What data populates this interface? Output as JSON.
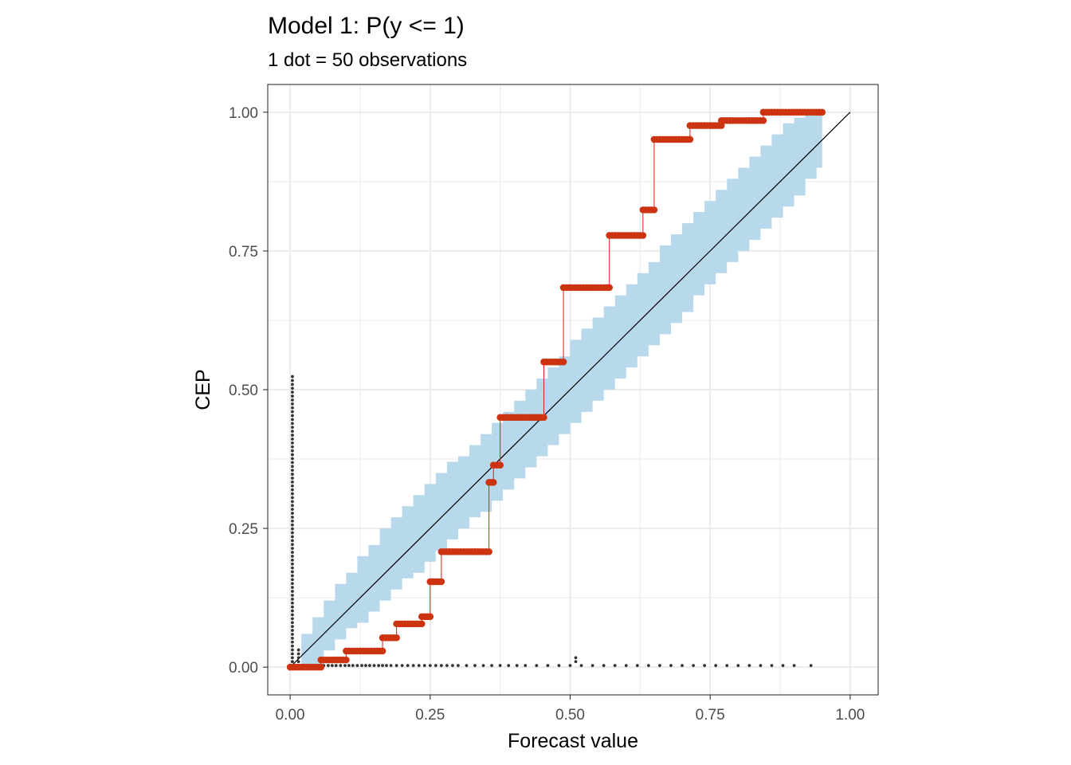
{
  "chart_data": {
    "type": "scatter",
    "title": "Model 1: P(y <= 1)",
    "subtitle": "1 dot = 50 observations",
    "xlabel": "Forecast value",
    "ylabel": "CEP",
    "xlim": [
      -0.04,
      1.05
    ],
    "ylim": [
      -0.05,
      1.05
    ],
    "x_ticks": [
      "0.00",
      "0.25",
      "0.50",
      "0.75",
      "1.00"
    ],
    "y_ticks": [
      "0.00",
      "0.25",
      "0.50",
      "0.75",
      "1.00"
    ],
    "grid": true,
    "legend": "none",
    "colors": {
      "cep": "#cc3311",
      "cep_line": "#e31a1c",
      "band": "#b8d8ec",
      "diagonal": "#000000",
      "histogram_dots": "#333333",
      "grid": "#ebebeb",
      "panel_border": "#333333"
    },
    "cep_steps": [
      {
        "x0": 0.0,
        "x1": 0.055,
        "y": 0.0
      },
      {
        "x0": 0.055,
        "x1": 0.1,
        "y": 0.013
      },
      {
        "x0": 0.1,
        "x1": 0.165,
        "y": 0.029
      },
      {
        "x0": 0.165,
        "x1": 0.19,
        "y": 0.053
      },
      {
        "x0": 0.19,
        "x1": 0.235,
        "y": 0.078
      },
      {
        "x0": 0.235,
        "x1": 0.25,
        "y": 0.091
      },
      {
        "x0": 0.25,
        "x1": 0.27,
        "y": 0.154
      },
      {
        "x0": 0.27,
        "x1": 0.355,
        "y": 0.208
      },
      {
        "x0": 0.355,
        "x1": 0.363,
        "y": 0.333
      },
      {
        "x0": 0.363,
        "x1": 0.375,
        "y": 0.364
      },
      {
        "x0": 0.375,
        "x1": 0.453,
        "y": 0.45
      },
      {
        "x0": 0.453,
        "x1": 0.488,
        "y": 0.55
      },
      {
        "x0": 0.488,
        "x1": 0.57,
        "y": 0.684
      },
      {
        "x0": 0.57,
        "x1": 0.63,
        "y": 0.778
      },
      {
        "x0": 0.63,
        "x1": 0.65,
        "y": 0.824
      },
      {
        "x0": 0.65,
        "x1": 0.714,
        "y": 0.951
      },
      {
        "x0": 0.714,
        "x1": 0.77,
        "y": 0.976
      },
      {
        "x0": 0.77,
        "x1": 0.845,
        "y": 0.985
      },
      {
        "x0": 0.845,
        "x1": 0.95,
        "y": 1.0
      }
    ],
    "band": {
      "x": [
        0.0,
        0.02,
        0.04,
        0.06,
        0.08,
        0.1,
        0.12,
        0.14,
        0.16,
        0.18,
        0.2,
        0.22,
        0.24,
        0.26,
        0.28,
        0.3,
        0.32,
        0.34,
        0.36,
        0.38,
        0.4,
        0.42,
        0.44,
        0.46,
        0.48,
        0.5,
        0.52,
        0.54,
        0.56,
        0.58,
        0.6,
        0.62,
        0.64,
        0.66,
        0.68,
        0.7,
        0.72,
        0.74,
        0.76,
        0.78,
        0.8,
        0.82,
        0.84,
        0.86,
        0.88,
        0.9,
        0.92,
        0.94,
        0.95
      ],
      "lower": [
        0.0,
        0.0,
        0.0,
        0.0,
        0.03,
        0.05,
        0.07,
        0.08,
        0.1,
        0.12,
        0.14,
        0.16,
        0.17,
        0.19,
        0.21,
        0.23,
        0.25,
        0.27,
        0.28,
        0.3,
        0.32,
        0.34,
        0.36,
        0.38,
        0.4,
        0.42,
        0.44,
        0.46,
        0.48,
        0.5,
        0.52,
        0.54,
        0.56,
        0.58,
        0.6,
        0.62,
        0.64,
        0.67,
        0.69,
        0.71,
        0.73,
        0.75,
        0.77,
        0.79,
        0.81,
        0.83,
        0.85,
        0.88,
        0.9
      ],
      "upper": [
        0.0,
        0.06,
        0.09,
        0.12,
        0.15,
        0.17,
        0.2,
        0.22,
        0.25,
        0.27,
        0.29,
        0.31,
        0.33,
        0.35,
        0.37,
        0.38,
        0.4,
        0.42,
        0.44,
        0.46,
        0.48,
        0.5,
        0.52,
        0.54,
        0.56,
        0.59,
        0.61,
        0.63,
        0.65,
        0.67,
        0.69,
        0.71,
        0.73,
        0.76,
        0.78,
        0.8,
        0.82,
        0.84,
        0.86,
        0.88,
        0.9,
        0.92,
        0.94,
        0.96,
        0.98,
        0.99,
        1.0,
        1.0,
        1.0
      ]
    },
    "diagonal": [
      [
        0,
        0
      ],
      [
        1,
        1
      ]
    ],
    "histogram_dots": {
      "vertical": {
        "x": 0.004,
        "count": 75
      },
      "horizontal_x": [
        0.008,
        0.015,
        0.022,
        0.03,
        0.038,
        0.045,
        0.052,
        0.06,
        0.068,
        0.075,
        0.082,
        0.09,
        0.098,
        0.105,
        0.112,
        0.12,
        0.128,
        0.135,
        0.142,
        0.15,
        0.158,
        0.165,
        0.172,
        0.18,
        0.19,
        0.2,
        0.21,
        0.22,
        0.23,
        0.24,
        0.25,
        0.26,
        0.27,
        0.28,
        0.29,
        0.3,
        0.315,
        0.33,
        0.345,
        0.36,
        0.375,
        0.39,
        0.405,
        0.42,
        0.44,
        0.46,
        0.48,
        0.5,
        0.52,
        0.54,
        0.56,
        0.58,
        0.6,
        0.62,
        0.64,
        0.66,
        0.68,
        0.7,
        0.72,
        0.74,
        0.76,
        0.78,
        0.8,
        0.82,
        0.84,
        0.86,
        0.88,
        0.9,
        0.93
      ],
      "stacks": [
        {
          "x": 0.004,
          "count": 1
        },
        {
          "x": 0.015,
          "count": 4
        },
        {
          "x": 0.51,
          "count": 2
        }
      ]
    }
  }
}
